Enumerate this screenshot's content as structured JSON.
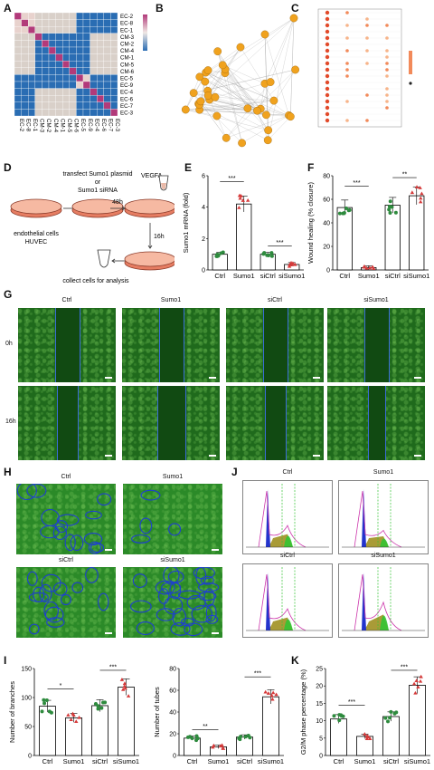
{
  "panels": {
    "A": "A",
    "B": "B",
    "C": "C",
    "D": "D",
    "E": "E",
    "F": "F",
    "G": "G",
    "H": "H",
    "I": "I",
    "J": "J",
    "K": "K"
  },
  "heatmap": {
    "rows": [
      "EC-2",
      "EC-8",
      "EC-1",
      "CM-3",
      "CM-2",
      "CM-4",
      "CM-1",
      "CM-5",
      "CM-6",
      "EC-5",
      "EC-9",
      "EC-4",
      "EC-6",
      "EC-7",
      "EC-3"
    ],
    "cols": [
      "EC-2",
      "EC-8",
      "EC-1",
      "CM-3",
      "CM-2",
      "CM-4",
      "CM-1",
      "CM-5",
      "CM-6",
      "EC-5",
      "EC-9",
      "EC-4",
      "EC-6",
      "EC-7",
      "EC-3"
    ],
    "colors": {
      "high": "#b23a7a",
      "mid": "#e8d2cd",
      "low": "#2a6db3",
      "neutral": "#d9d0c9"
    }
  },
  "schematic": {
    "transfect": "transfect Sumo1 plasmid",
    "or": "or",
    "sirna": "Sumo1 siRNA",
    "vegfa": "VEGFA",
    "t48": "48h",
    "t16": "16h",
    "cells1": "endothelial cells",
    "cells2": "HUVEC",
    "collect": "collect cells for analysis"
  },
  "groups": [
    "Ctrl",
    "Sumo1",
    "siCtrl",
    "siSumo1"
  ],
  "time_labels": [
    "0h",
    "16h"
  ],
  "charts": {
    "E": {
      "ylabel": "Sumo1 mRNA (fold)",
      "yticks": [
        "0",
        "2",
        "4",
        "6"
      ],
      "ymax": 6,
      "values": [
        1.0,
        4.2,
        1.0,
        0.35
      ],
      "sig": [
        "***",
        "***"
      ]
    },
    "F": {
      "ylabel": "Wound healing (% closure)",
      "yticks": [
        "0",
        "20",
        "40",
        "60",
        "80"
      ],
      "ymax": 80,
      "values": [
        53,
        2,
        55,
        63
      ],
      "sig": [
        "***",
        "**"
      ]
    },
    "I1": {
      "ylabel": "Number of branches",
      "yticks": [
        "0",
        "50",
        "100",
        "150"
      ],
      "ymax": 150,
      "values": [
        85,
        65,
        86,
        118
      ],
      "sig": [
        "*",
        "***"
      ]
    },
    "I2": {
      "ylabel": "Number of tubes",
      "yticks": [
        "0",
        "20",
        "40",
        "60",
        "80"
      ],
      "ymax": 80,
      "values": [
        16,
        8,
        17,
        54
      ],
      "sig": [
        "**",
        "***"
      ]
    },
    "K": {
      "ylabel": "G2/M phase percentage (%)",
      "yticks": [
        "0",
        "5",
        "10",
        "15",
        "20",
        "25"
      ],
      "ymax": 25,
      "values": [
        10.5,
        5.5,
        11.2,
        20.2
      ],
      "sig": [
        "***",
        "***"
      ]
    }
  },
  "colors": {
    "ctrl": "#2e8b3e",
    "sumo": "#d63a3a",
    "network_node": "#f0a21e",
    "flow_blue": "#2233cc",
    "flow_olive": "#9a8a14",
    "flow_green": "#33c433",
    "flow_magenta": "#cc33aa"
  }
}
